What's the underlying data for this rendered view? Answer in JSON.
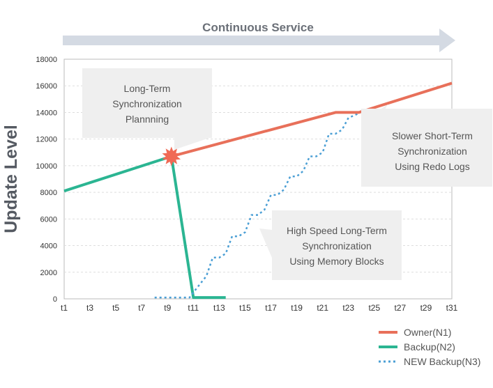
{
  "banner": {
    "label": "Continuous Service"
  },
  "chart_data": {
    "type": "line",
    "title": "",
    "xlabel": "",
    "ylabel": "Update Level",
    "xlim": [
      1,
      31
    ],
    "ylim": [
      0,
      18000
    ],
    "yticks": [
      0,
      2000,
      4000,
      6000,
      8000,
      10000,
      12000,
      14000,
      16000,
      18000
    ],
    "xticks": [
      "t1",
      "t3",
      "t5",
      "t7",
      "t9",
      "t11",
      "t13",
      "t15",
      "t17",
      "t19",
      "t21",
      "t23",
      "t25",
      "t27",
      "t29",
      "t31"
    ],
    "grid": "horizontal-dashed",
    "legend_position": "bottom-right",
    "series": [
      {
        "name": "Owner(N1)",
        "color": "#e8705a",
        "style": "solid",
        "points": [
          [
            9.3,
            10700
          ],
          [
            22,
            14000
          ],
          [
            23.8,
            14000
          ],
          [
            31,
            16200
          ]
        ]
      },
      {
        "name": "Backup(N2)",
        "color": "#2bb592",
        "style": "solid",
        "points": [
          [
            1,
            8100
          ],
          [
            9.3,
            10700
          ],
          [
            11,
            100
          ],
          [
            13.5,
            100
          ]
        ]
      },
      {
        "name": "NEW Backup(N3)",
        "color": "#4b9fd5",
        "style": "dotted",
        "points": [
          [
            8,
            100
          ],
          [
            10.7,
            100
          ],
          [
            11.5,
            1100
          ],
          [
            12,
            1700
          ],
          [
            12.5,
            3100
          ],
          [
            13,
            3100
          ],
          [
            13.5,
            3400
          ],
          [
            14,
            4700
          ],
          [
            14.5,
            4700
          ],
          [
            15,
            5000
          ],
          [
            15.5,
            6300
          ],
          [
            16,
            6300
          ],
          [
            16.5,
            6700
          ],
          [
            17,
            7800
          ],
          [
            17.5,
            7800
          ],
          [
            18,
            8200
          ],
          [
            18.5,
            9200
          ],
          [
            19,
            9200
          ],
          [
            19.5,
            9600
          ],
          [
            20,
            10700
          ],
          [
            20.5,
            10700
          ],
          [
            21,
            11000
          ],
          [
            21.5,
            12400
          ],
          [
            22,
            12400
          ],
          [
            22.5,
            12700
          ],
          [
            23,
            13600
          ],
          [
            23.5,
            13800
          ],
          [
            24,
            14050
          ],
          [
            31,
            16200
          ]
        ]
      }
    ],
    "annotations": [
      {
        "text": [
          "Long-Term",
          "Synchronization",
          "Plannning"
        ],
        "x": 9.3,
        "y": 10700
      },
      {
        "text": [
          "Slower Short-Term",
          "Synchronization",
          "Using Redo Logs"
        ],
        "x": 24.5,
        "y": 14000
      },
      {
        "text": [
          "High Speed Long-Term",
          "Synchronization",
          "Using Memory Blocks"
        ],
        "x": 17.2,
        "y": 5000
      }
    ]
  },
  "colors": {
    "banner": "#d4dae3",
    "callout": "#efefef",
    "star": "#f06a55"
  }
}
